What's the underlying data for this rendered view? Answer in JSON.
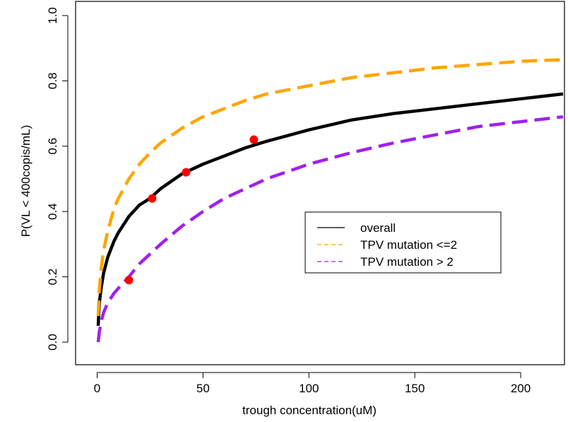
{
  "chart_data": {
    "type": "line",
    "title": "",
    "xlabel": "trough concentration(uM)",
    "ylabel": "P(VL < 400copis/mL)",
    "xlim": [
      0,
      220
    ],
    "ylim": [
      0,
      1
    ],
    "x_ticks": [
      "0",
      "50",
      "100",
      "150",
      "200"
    ],
    "y_ticks": [
      "0.0",
      "0.2",
      "0.4",
      "0.6",
      "0.8",
      "1.0"
    ],
    "grid": false,
    "legend_position": "center-right",
    "legend": [
      {
        "label": "overall",
        "color": "#000000",
        "style": "solid"
      },
      {
        "label": "TPV mutation <=2",
        "color": "#FFA500",
        "style": "dashed"
      },
      {
        "label": "TPV mutation > 2",
        "color": "#A020F0",
        "style": "dashed"
      }
    ],
    "series": [
      {
        "name": "overall",
        "color": "#000000",
        "style": "solid",
        "x": [
          0.5,
          1,
          2,
          3,
          5,
          8,
          10,
          15,
          20,
          25,
          30,
          40,
          50,
          60,
          70,
          80,
          100,
          120,
          140,
          160,
          180,
          200,
          220
        ],
        "y": [
          0.05,
          0.12,
          0.17,
          0.21,
          0.26,
          0.31,
          0.335,
          0.385,
          0.42,
          0.44,
          0.47,
          0.515,
          0.545,
          0.57,
          0.595,
          0.615,
          0.65,
          0.68,
          0.7,
          0.715,
          0.73,
          0.745,
          0.76
        ]
      },
      {
        "name": "TPV mutation <=2",
        "color": "#FFA500",
        "style": "dashed",
        "x": [
          0.5,
          1,
          2,
          3,
          5,
          8,
          10,
          15,
          20,
          25,
          30,
          40,
          50,
          60,
          70,
          80,
          100,
          120,
          140,
          160,
          180,
          200,
          220
        ],
        "y": [
          0.08,
          0.16,
          0.23,
          0.28,
          0.34,
          0.41,
          0.44,
          0.5,
          0.545,
          0.58,
          0.61,
          0.655,
          0.69,
          0.715,
          0.74,
          0.76,
          0.785,
          0.81,
          0.825,
          0.84,
          0.85,
          0.86,
          0.865
        ]
      },
      {
        "name": "TPV mutation > 2",
        "color": "#A020F0",
        "style": "dashed",
        "x": [
          0.5,
          1,
          2,
          3,
          5,
          8,
          10,
          15,
          20,
          25,
          30,
          40,
          50,
          60,
          70,
          80,
          100,
          120,
          140,
          160,
          180,
          200,
          220
        ],
        "y": [
          0.0,
          0.03,
          0.065,
          0.09,
          0.12,
          0.15,
          0.165,
          0.2,
          0.24,
          0.27,
          0.3,
          0.355,
          0.4,
          0.44,
          0.47,
          0.5,
          0.545,
          0.58,
          0.61,
          0.635,
          0.66,
          0.675,
          0.69
        ]
      }
    ],
    "points": {
      "color": "#FF0000",
      "x": [
        15,
        26,
        42,
        74
      ],
      "y": [
        0.19,
        0.44,
        0.52,
        0.62
      ]
    }
  }
}
